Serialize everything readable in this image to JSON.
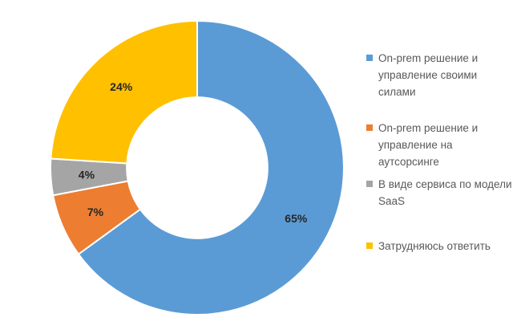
{
  "chart_data": {
    "type": "pie",
    "subtype": "doughnut",
    "title": "",
    "categories": [
      "On-prem решение и управление своими силами",
      "On-prem решение и управление на аутсорсинге",
      "В виде сервиса по модели SaaS",
      "Затрудняюсь ответить"
    ],
    "values": [
      65,
      7,
      4,
      24
    ],
    "data_labels": [
      "65%",
      "7%",
      "4%",
      "24%"
    ],
    "colors": [
      "#5b9bd5",
      "#ed7d31",
      "#a5a5a5",
      "#ffc000"
    ],
    "start_angle_deg": 0,
    "direction": "clockwise",
    "hole_ratio": 0.48,
    "legend_position": "right",
    "label_color": "#262626",
    "legend_text_color": "#595959",
    "slice_border_color": "#ffffff",
    "background": "#ffffff"
  },
  "legend": {
    "items": [
      {
        "lines": [
          "On-prem решение и",
          "управление своими",
          "силами"
        ]
      },
      {
        "lines": [
          "On-prem решение и",
          "управление на аутсорсинге"
        ]
      },
      {
        "lines": [
          "В виде сервиса по модели",
          "SaaS"
        ]
      },
      {
        "lines": [
          "Затрудняюсь ответить"
        ]
      }
    ]
  }
}
